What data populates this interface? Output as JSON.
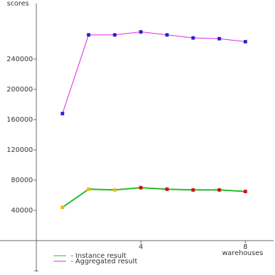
{
  "chart_data": {
    "type": "line",
    "y_label": "scores",
    "x_label": "warehouses",
    "x": [
      1,
      2,
      3,
      4,
      5,
      6,
      7,
      8
    ],
    "series": [
      {
        "name": "- Instance result",
        "color": "#22bb22",
        "marker_colors": [
          "#eebb00",
          "#eebb00",
          "#eebb00",
          "#cc1111",
          "#cc1111",
          "#cc1111",
          "#cc1111",
          "#cc1111"
        ],
        "values": [
          44000,
          68000,
          67000,
          70000,
          68000,
          67000,
          67000,
          65000
        ]
      },
      {
        "name": "- Aggregated result",
        "color": "#dd22dd",
        "marker_colors": [
          "#2222cc",
          "#2222cc",
          "#2222cc",
          "#2222cc",
          "#2222cc",
          "#2222cc",
          "#2222cc",
          "#2222cc"
        ],
        "values": [
          168000,
          272000,
          272000,
          276000,
          272000,
          268000,
          267000,
          263000
        ]
      }
    ],
    "xlim": [
      -1.39,
      9.08
    ],
    "ylim": [
      -40900,
      313600
    ],
    "xticks": [
      4,
      8
    ],
    "yticks": [
      40000,
      80000,
      120000,
      160000,
      200000,
      240000
    ]
  }
}
